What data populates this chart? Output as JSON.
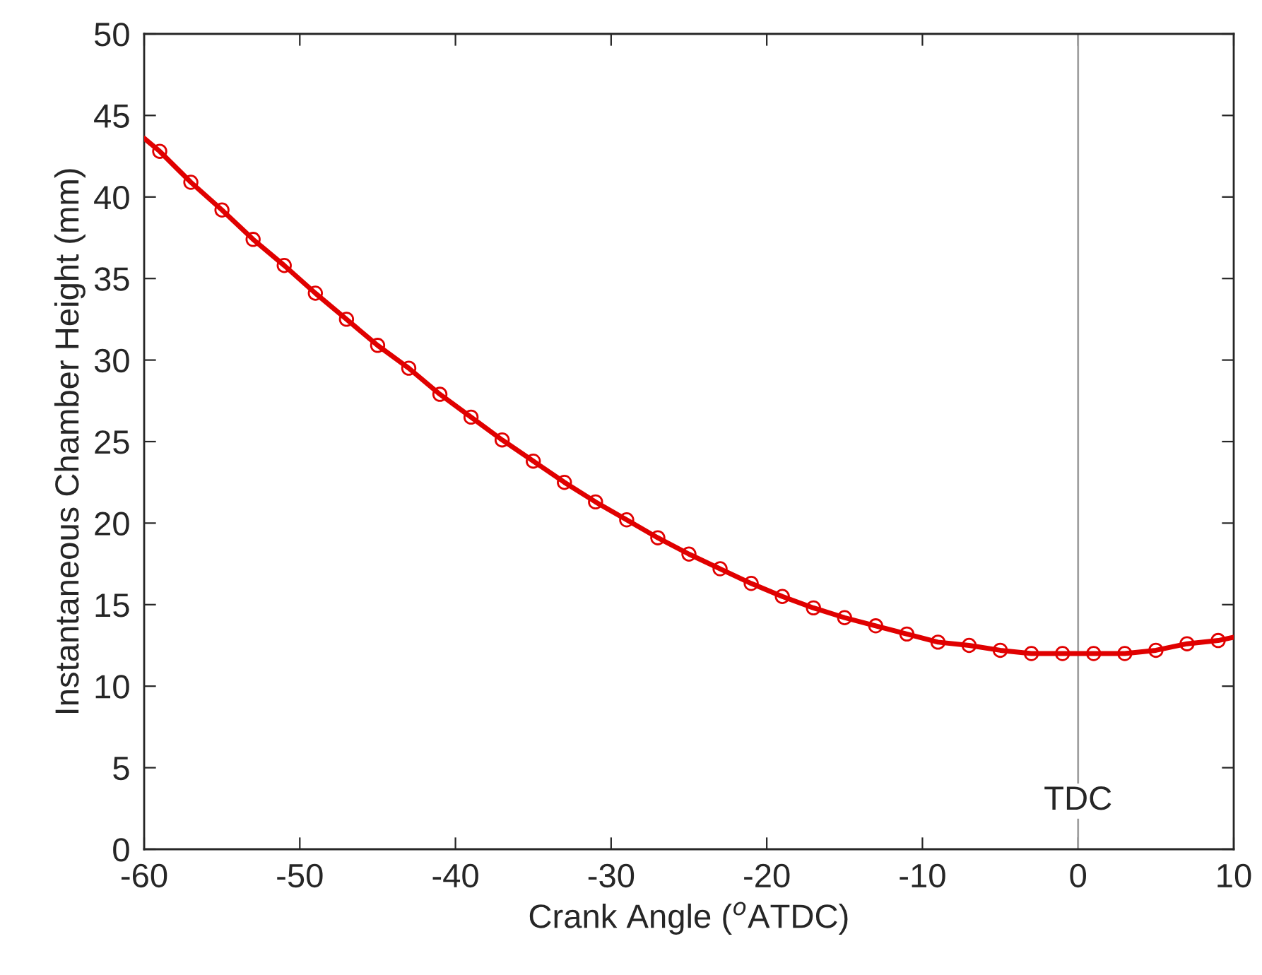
{
  "chart_data": {
    "type": "line",
    "xlabel": "Crank Angle ($^{o}$ATDC)",
    "ylabel": "Instantaneous Chamber Height (mm)",
    "xlim": [
      -60,
      10
    ],
    "xticks": [
      -60,
      -50,
      -40,
      -30,
      -20,
      -10,
      0,
      10
    ],
    "ylim": [
      0,
      50
    ],
    "yticks": [
      0,
      5,
      10,
      15,
      20,
      25,
      30,
      35,
      40,
      45,
      50
    ],
    "grid": false,
    "series": [
      {
        "color": "#e00000",
        "marker": "none",
        "x": [
          -60,
          -59,
          -57,
          -55,
          -53,
          -51,
          -49,
          -47,
          -45,
          -43,
          -41,
          -39,
          -37,
          -35,
          -33,
          -31,
          -29,
          -27,
          -25,
          -23,
          -21,
          -19,
          -17,
          -15,
          -13,
          -11,
          -9,
          -7,
          -5,
          -3,
          -1,
          1,
          3,
          5,
          7,
          9,
          10
        ],
        "values": [
          43.6,
          42.8,
          40.9,
          39.2,
          37.4,
          35.8,
          34.1,
          32.5,
          30.9,
          29.5,
          27.9,
          26.5,
          25.1,
          23.8,
          22.5,
          21.3,
          20.2,
          19.1,
          18.1,
          17.2,
          16.3,
          15.5,
          14.8,
          14.2,
          13.7,
          13.2,
          12.7,
          12.5,
          12.2,
          12.0,
          12.0,
          12.0,
          12.0,
          12.2,
          12.6,
          12.8,
          13.0
        ]
      },
      {
        "type": "scatter",
        "color": "#e00000",
        "marker": "circle",
        "x": [
          -59,
          -57,
          -55,
          -53,
          -51,
          -49,
          -47,
          -45,
          -43,
          -41,
          -39,
          -37,
          -35,
          -33,
          -31,
          -29,
          -27,
          -25,
          -23,
          -21,
          -19,
          -17,
          -15,
          -13,
          -11,
          -9,
          -7,
          -5,
          -3,
          -1,
          1,
          3,
          5,
          7,
          9
        ],
        "values": [
          42.8,
          40.9,
          39.2,
          37.4,
          35.8,
          34.1,
          32.5,
          30.9,
          29.5,
          27.9,
          26.5,
          25.1,
          23.8,
          22.5,
          21.3,
          20.2,
          19.1,
          18.1,
          17.2,
          16.3,
          15.5,
          14.8,
          14.2,
          13.7,
          13.2,
          12.7,
          12.5,
          12.2,
          12.0,
          12.0,
          12.0,
          12.0,
          12.2,
          12.6,
          12.8
        ]
      }
    ],
    "ref_lines": [
      {
        "axis": "x",
        "value": 0,
        "label": "TDC",
        "color": "#a0a0a0"
      }
    ]
  }
}
